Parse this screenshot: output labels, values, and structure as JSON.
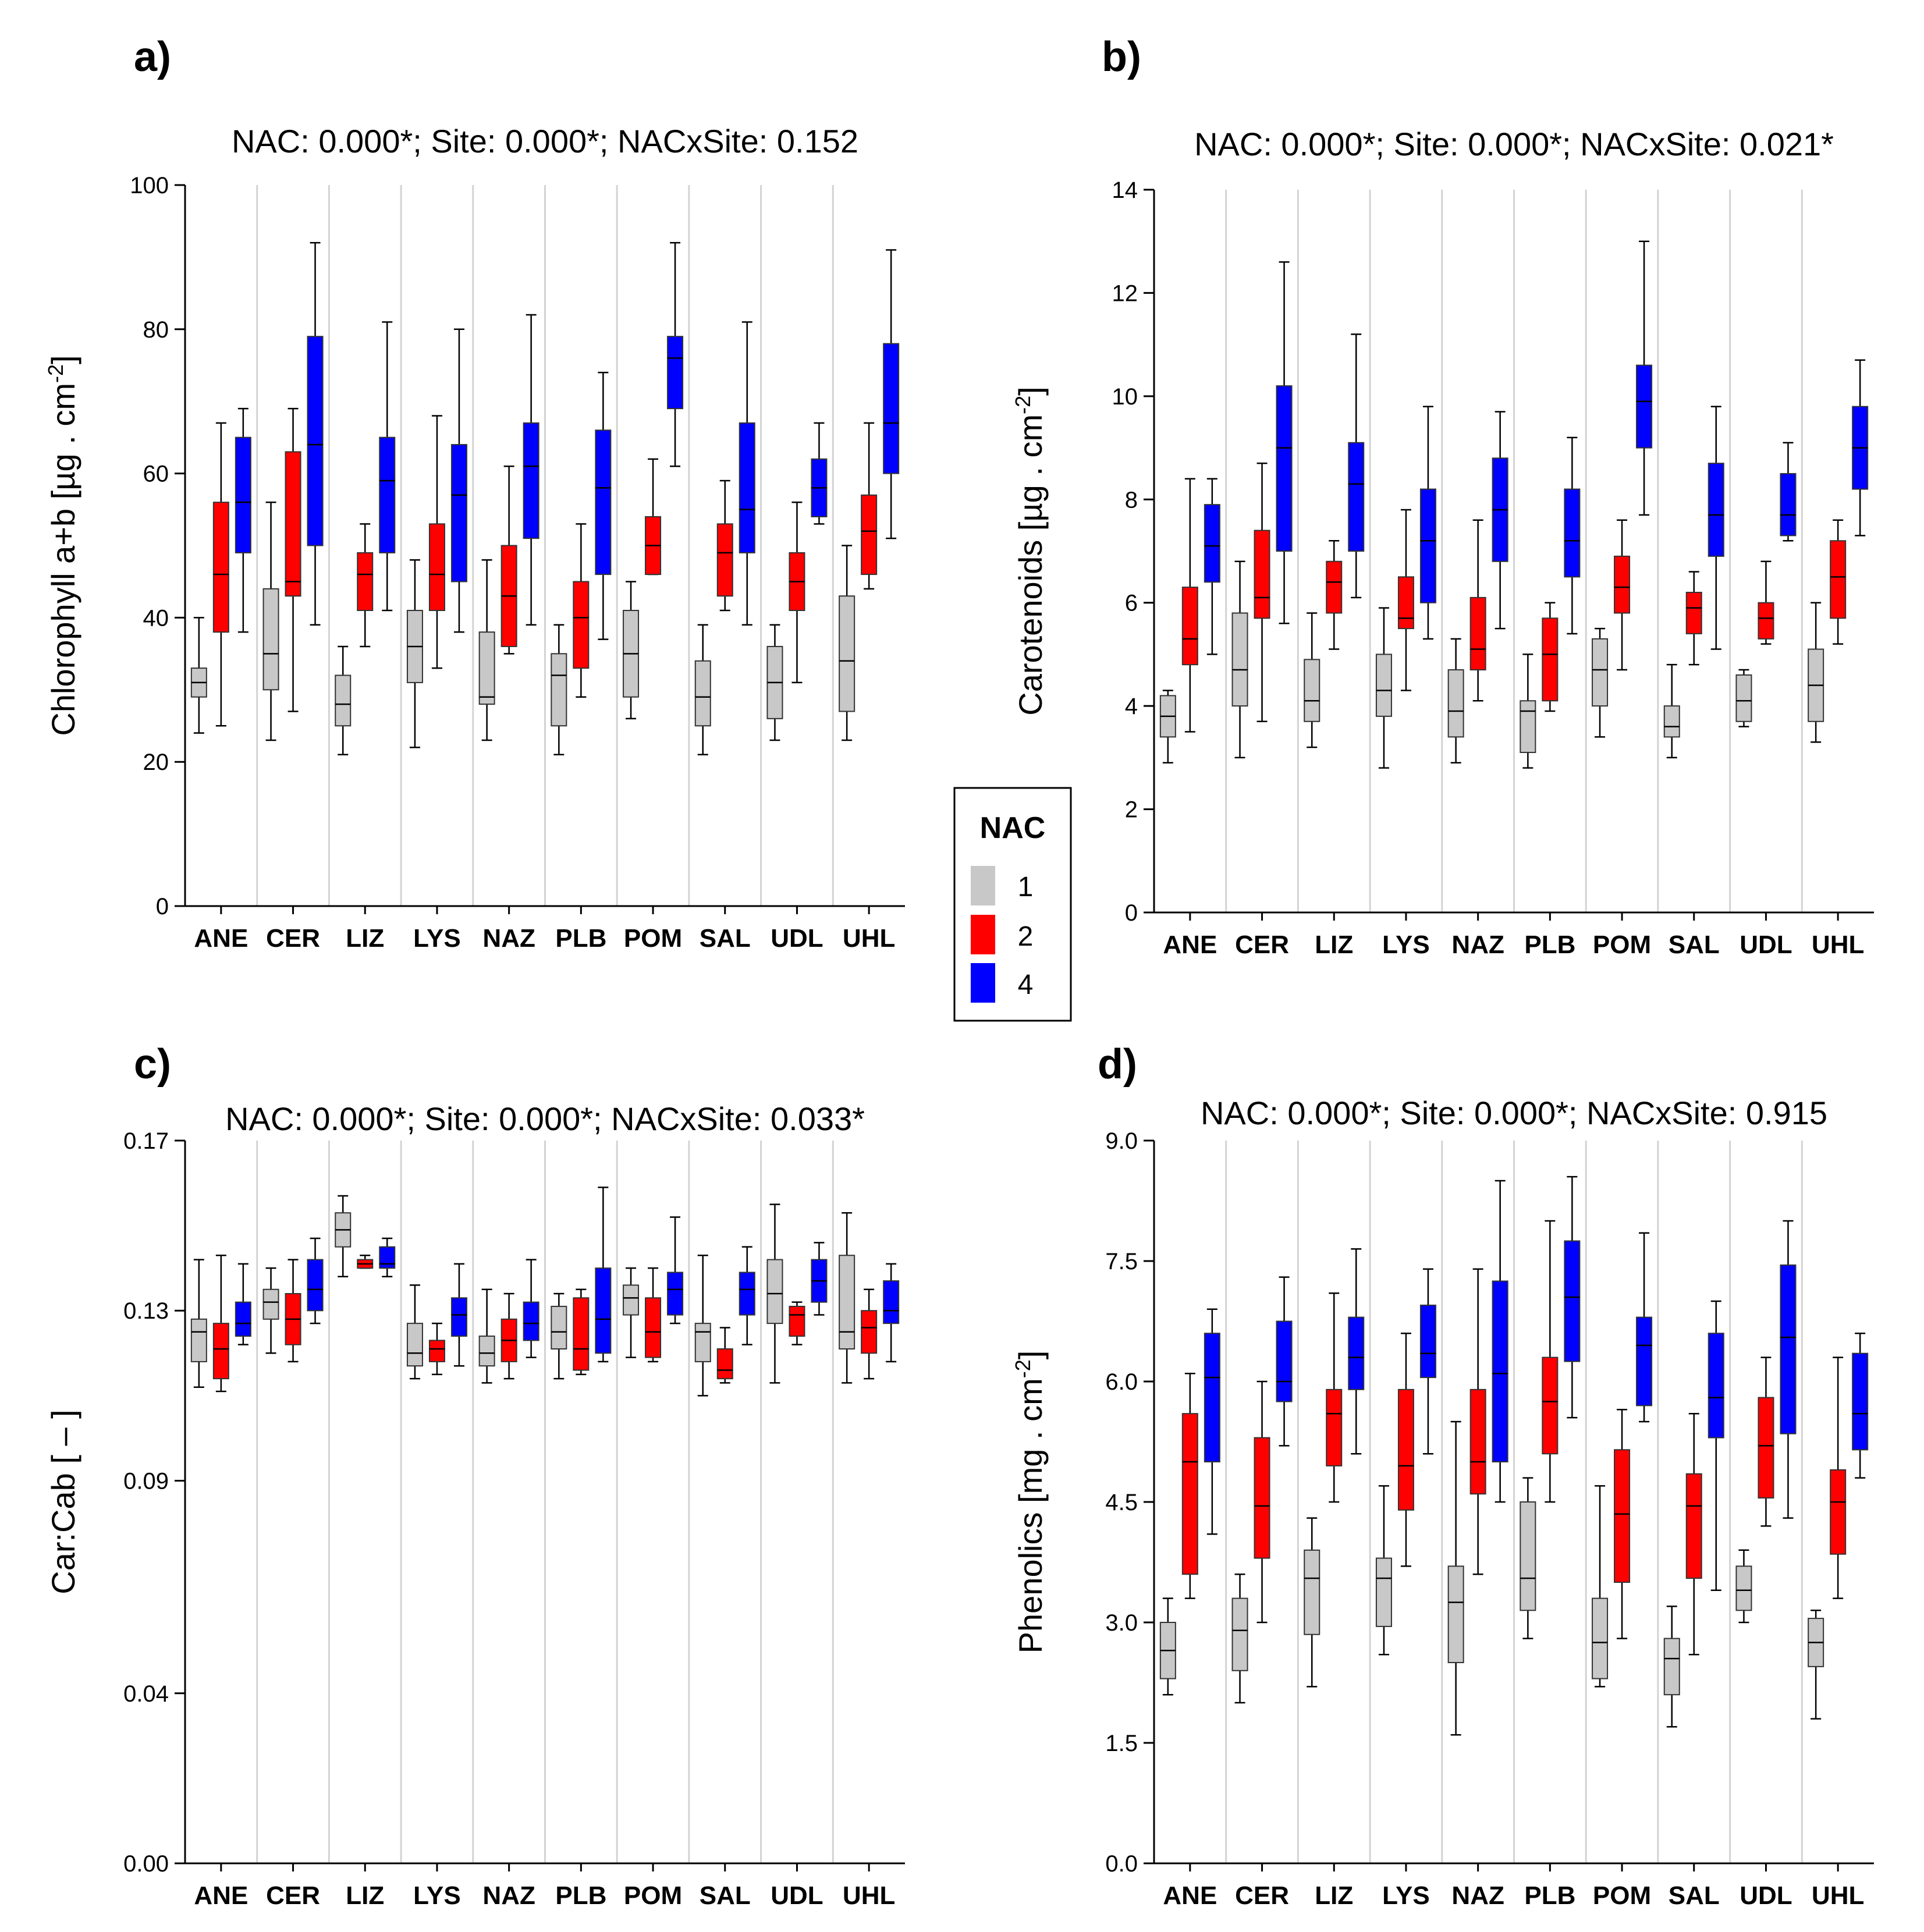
{
  "colors": {
    "nac1": "#c8c8c8",
    "nac2": "#ff0000",
    "nac4": "#0000ff",
    "grid": "#d3d3d3",
    "axis": "#000000"
  },
  "legend": {
    "title": "NAC",
    "items": [
      {
        "label": "1",
        "color": "#c8c8c8"
      },
      {
        "label": "2",
        "color": "#ff0000"
      },
      {
        "label": "4",
        "color": "#0000ff"
      }
    ]
  },
  "chart_data": [
    {
      "type": "box",
      "panel": "a)",
      "title": "NAC: 0.000*; Site: 0.000*; NACxSite: 0.152",
      "ylabel_main": "Chlorophyll a+b [µg . cm",
      "ylabel_sup": "-2",
      "ylabel_end": "]",
      "ylim": [
        0,
        100
      ],
      "yticks": [
        0,
        20,
        40,
        60,
        80,
        100
      ],
      "ytick_labels": [
        "0",
        "20",
        "40",
        "60",
        "80",
        "100"
      ],
      "categories": [
        "ANE",
        "CER",
        "LIZ",
        "LYS",
        "NAZ",
        "PLB",
        "POM",
        "SAL",
        "UDL",
        "UHL"
      ],
      "series": [
        {
          "name": "1",
          "boxes": [
            [
              24,
              29,
              31,
              33,
              40
            ],
            [
              23,
              30,
              35,
              44,
              56
            ],
            [
              21,
              25,
              28,
              32,
              36
            ],
            [
              22,
              31,
              36,
              41,
              48
            ],
            [
              23,
              28,
              29,
              38,
              48
            ],
            [
              21,
              25,
              32,
              35,
              39
            ],
            [
              26,
              29,
              35,
              41,
              45
            ],
            [
              21,
              25,
              29,
              34,
              39
            ],
            [
              23,
              26,
              31,
              36,
              39
            ],
            [
              23,
              27,
              34,
              43,
              50
            ]
          ]
        },
        {
          "name": "2",
          "boxes": [
            [
              25,
              38,
              46,
              56,
              67
            ],
            [
              27,
              43,
              45,
              63,
              69
            ],
            [
              36,
              41,
              46,
              49,
              53
            ],
            [
              33,
              41,
              46,
              53,
              68
            ],
            [
              35,
              36,
              43,
              50,
              61
            ],
            [
              29,
              33,
              40,
              45,
              53
            ],
            [
              46,
              46,
              50,
              54,
              62
            ],
            [
              41,
              43,
              49,
              53,
              59
            ],
            [
              31,
              41,
              45,
              49,
              56
            ],
            [
              44,
              46,
              52,
              57,
              67
            ]
          ]
        },
        {
          "name": "4",
          "boxes": [
            [
              38,
              49,
              56,
              65,
              69
            ],
            [
              39,
              50,
              64,
              79,
              92
            ],
            [
              41,
              49,
              59,
              65,
              81
            ],
            [
              38,
              45,
              57,
              64,
              80
            ],
            [
              39,
              51,
              61,
              67,
              82
            ],
            [
              37,
              46,
              58,
              66,
              74
            ],
            [
              61,
              69,
              76,
              79,
              92
            ],
            [
              39,
              49,
              55,
              67,
              81
            ],
            [
              53,
              54,
              58,
              62,
              67
            ],
            [
              51,
              60,
              67,
              78,
              91
            ]
          ]
        }
      ]
    },
    {
      "type": "box",
      "panel": "b)",
      "title": "NAC: 0.000*; Site: 0.000*; NACxSite: 0.021*",
      "ylabel_main": "Carotenoids [µg . cm",
      "ylabel_sup": "-2",
      "ylabel_end": "]",
      "ylim": [
        0,
        14
      ],
      "yticks": [
        0,
        2,
        4,
        6,
        8,
        10,
        12,
        14
      ],
      "ytick_labels": [
        "0",
        "2",
        "4",
        "6",
        "8",
        "10",
        "12",
        "14"
      ],
      "categories": [
        "ANE",
        "CER",
        "LIZ",
        "LYS",
        "NAZ",
        "PLB",
        "POM",
        "SAL",
        "UDL",
        "UHL"
      ],
      "series": [
        {
          "name": "1",
          "boxes": [
            [
              2.9,
              3.4,
              3.8,
              4.2,
              4.3
            ],
            [
              3.0,
              4.0,
              4.7,
              5.8,
              6.8
            ],
            [
              3.2,
              3.7,
              4.1,
              4.9,
              5.8
            ],
            [
              2.8,
              3.8,
              4.3,
              5.0,
              5.9
            ],
            [
              2.9,
              3.4,
              3.9,
              4.7,
              5.3
            ],
            [
              2.8,
              3.1,
              3.9,
              4.1,
              5.0
            ],
            [
              3.4,
              4.0,
              4.7,
              5.3,
              5.5
            ],
            [
              3.0,
              3.4,
              3.6,
              4.0,
              4.8
            ],
            [
              3.6,
              3.7,
              4.1,
              4.6,
              4.7
            ],
            [
              3.3,
              3.7,
              4.4,
              5.1,
              6.0
            ]
          ]
        },
        {
          "name": "2",
          "boxes": [
            [
              3.5,
              4.8,
              5.3,
              6.3,
              8.4
            ],
            [
              3.7,
              5.7,
              6.1,
              7.4,
              8.7
            ],
            [
              5.1,
              5.8,
              6.4,
              6.8,
              7.2
            ],
            [
              4.3,
              5.5,
              5.7,
              6.5,
              7.8
            ],
            [
              4.1,
              4.7,
              5.1,
              6.1,
              7.6
            ],
            [
              3.9,
              4.1,
              5.0,
              5.7,
              6.0
            ],
            [
              4.7,
              5.8,
              6.3,
              6.9,
              7.6
            ],
            [
              4.8,
              5.4,
              5.9,
              6.2,
              6.6
            ],
            [
              5.2,
              5.3,
              5.7,
              6.0,
              6.8
            ],
            [
              5.2,
              5.7,
              6.5,
              7.2,
              7.6
            ]
          ]
        },
        {
          "name": "4",
          "boxes": [
            [
              5.0,
              6.4,
              7.1,
              7.9,
              8.4
            ],
            [
              5.6,
              7.0,
              9.0,
              10.2,
              12.6
            ],
            [
              6.1,
              7.0,
              8.3,
              9.1,
              11.2
            ],
            [
              5.3,
              6.0,
              7.2,
              8.2,
              9.8
            ],
            [
              5.5,
              6.8,
              7.8,
              8.8,
              9.7
            ],
            [
              5.4,
              6.5,
              7.2,
              8.2,
              9.2
            ],
            [
              7.7,
              9.0,
              9.9,
              10.6,
              13.0
            ],
            [
              5.1,
              6.9,
              7.7,
              8.7,
              9.8
            ],
            [
              7.2,
              7.3,
              7.7,
              8.5,
              9.1
            ],
            [
              7.3,
              8.2,
              9.0,
              9.8,
              10.7
            ]
          ]
        }
      ]
    },
    {
      "type": "box",
      "panel": "c)",
      "title": "NAC: 0.000*; Site: 0.000*; NACxSite: 0.033*",
      "ylabel_main": "Car:Cab [ – ]",
      "ylabel_sup": "",
      "ylabel_end": "",
      "ylim": [
        0.0,
        0.17
      ],
      "yticks": [
        0.0,
        0.04,
        0.09,
        0.13,
        0.17
      ],
      "ytick_labels": [
        "0.00",
        "0.04",
        "0.09",
        "0.13",
        "0.17"
      ],
      "categories": [
        "ANE",
        "CER",
        "LIZ",
        "LYS",
        "NAZ",
        "PLB",
        "POM",
        "SAL",
        "UDL",
        "UHL"
      ],
      "series": [
        {
          "name": "1",
          "boxes": [
            [
              0.112,
              0.118,
              0.125,
              0.128,
              0.142
            ],
            [
              0.12,
              0.128,
              0.132,
              0.135,
              0.14
            ],
            [
              0.138,
              0.145,
              0.149,
              0.153,
              0.157
            ],
            [
              0.114,
              0.117,
              0.12,
              0.127,
              0.136
            ],
            [
              0.113,
              0.117,
              0.12,
              0.124,
              0.135
            ],
            [
              0.114,
              0.121,
              0.125,
              0.131,
              0.134
            ],
            [
              0.119,
              0.129,
              0.133,
              0.136,
              0.14
            ],
            [
              0.11,
              0.118,
              0.125,
              0.127,
              0.143
            ],
            [
              0.113,
              0.127,
              0.134,
              0.142,
              0.155
            ],
            [
              0.113,
              0.121,
              0.125,
              0.143,
              0.153
            ]
          ]
        },
        {
          "name": "2",
          "boxes": [
            [
              0.111,
              0.114,
              0.121,
              0.127,
              0.143
            ],
            [
              0.118,
              0.122,
              0.128,
              0.134,
              0.142
            ],
            [
              0.14,
              0.14,
              0.141,
              0.142,
              0.143
            ],
            [
              0.115,
              0.118,
              0.121,
              0.123,
              0.127
            ],
            [
              0.114,
              0.118,
              0.123,
              0.128,
              0.134
            ],
            [
              0.115,
              0.116,
              0.121,
              0.133,
              0.135
            ],
            [
              0.118,
              0.119,
              0.125,
              0.133,
              0.14
            ],
            [
              0.113,
              0.114,
              0.116,
              0.121,
              0.126
            ],
            [
              0.122,
              0.124,
              0.129,
              0.131,
              0.132
            ],
            [
              0.114,
              0.12,
              0.126,
              0.13,
              0.135
            ]
          ]
        },
        {
          "name": "4",
          "boxes": [
            [
              0.122,
              0.124,
              0.127,
              0.132,
              0.141
            ],
            [
              0.127,
              0.13,
              0.135,
              0.142,
              0.147
            ],
            [
              0.138,
              0.14,
              0.141,
              0.145,
              0.147
            ],
            [
              0.117,
              0.124,
              0.129,
              0.133,
              0.141
            ],
            [
              0.119,
              0.123,
              0.127,
              0.132,
              0.142
            ],
            [
              0.118,
              0.12,
              0.128,
              0.14,
              0.159
            ],
            [
              0.127,
              0.129,
              0.135,
              0.139,
              0.152
            ],
            [
              0.122,
              0.129,
              0.135,
              0.139,
              0.145
            ],
            [
              0.129,
              0.132,
              0.137,
              0.142,
              0.146
            ],
            [
              0.118,
              0.127,
              0.13,
              0.137,
              0.141
            ]
          ]
        }
      ]
    },
    {
      "type": "box",
      "panel": "d)",
      "title": "NAC: 0.000*; Site: 0.000*; NACxSite: 0.915",
      "ylabel_main": "Phenolics [mg . cm",
      "ylabel_sup": "-2",
      "ylabel_end": "]",
      "ylim": [
        0.0,
        9.0
      ],
      "yticks": [
        0.0,
        1.5,
        3.0,
        4.5,
        6.0,
        7.5,
        9.0
      ],
      "ytick_labels": [
        "0.0",
        "1.5",
        "3.0",
        "4.5",
        "6.0",
        "7.5",
        "9.0"
      ],
      "categories": [
        "ANE",
        "CER",
        "LIZ",
        "LYS",
        "NAZ",
        "PLB",
        "POM",
        "SAL",
        "UDL",
        "UHL"
      ],
      "series": [
        {
          "name": "1",
          "boxes": [
            [
              2.1,
              2.3,
              2.65,
              3.0,
              3.3
            ],
            [
              2.0,
              2.4,
              2.9,
              3.3,
              3.6
            ],
            [
              2.2,
              2.85,
              3.55,
              3.9,
              4.3
            ],
            [
              2.6,
              2.95,
              3.55,
              3.8,
              4.7
            ],
            [
              1.6,
              2.5,
              3.25,
              3.7,
              5.5
            ],
            [
              2.8,
              3.15,
              3.55,
              4.5,
              4.8
            ],
            [
              2.2,
              2.3,
              2.75,
              3.3,
              4.7
            ],
            [
              1.7,
              2.1,
              2.55,
              2.8,
              3.2
            ],
            [
              3.0,
              3.15,
              3.4,
              3.7,
              3.9
            ],
            [
              1.8,
              2.45,
              2.75,
              3.05,
              3.15
            ]
          ]
        },
        {
          "name": "2",
          "boxes": [
            [
              3.3,
              3.6,
              5.0,
              5.6,
              6.1
            ],
            [
              3.0,
              3.8,
              4.45,
              5.3,
              6.0
            ],
            [
              4.5,
              4.95,
              5.6,
              5.9,
              7.1
            ],
            [
              3.7,
              4.4,
              4.95,
              5.9,
              6.6
            ],
            [
              3.6,
              4.6,
              5.0,
              5.9,
              7.4
            ],
            [
              4.5,
              5.1,
              5.75,
              6.3,
              8.0
            ],
            [
              2.8,
              3.5,
              4.35,
              5.15,
              5.65
            ],
            [
              2.6,
              3.55,
              4.45,
              4.85,
              5.6
            ],
            [
              4.2,
              4.55,
              5.2,
              5.8,
              6.3
            ],
            [
              3.3,
              3.85,
              4.5,
              4.9,
              6.3
            ]
          ]
        },
        {
          "name": "4",
          "boxes": [
            [
              4.1,
              5.0,
              6.05,
              6.6,
              6.9
            ],
            [
              5.2,
              5.75,
              6.0,
              6.75,
              7.3
            ],
            [
              5.1,
              5.9,
              6.3,
              6.8,
              7.65
            ],
            [
              5.1,
              6.05,
              6.35,
              6.95,
              7.4
            ],
            [
              4.5,
              5.0,
              6.1,
              7.25,
              8.5
            ],
            [
              5.55,
              6.25,
              7.05,
              7.75,
              8.55
            ],
            [
              5.5,
              5.7,
              6.45,
              6.8,
              7.85
            ],
            [
              3.4,
              5.3,
              5.8,
              6.6,
              7.0
            ],
            [
              4.3,
              5.35,
              6.55,
              7.45,
              8.0
            ],
            [
              4.8,
              5.15,
              5.6,
              6.35,
              6.6
            ]
          ]
        }
      ]
    }
  ]
}
